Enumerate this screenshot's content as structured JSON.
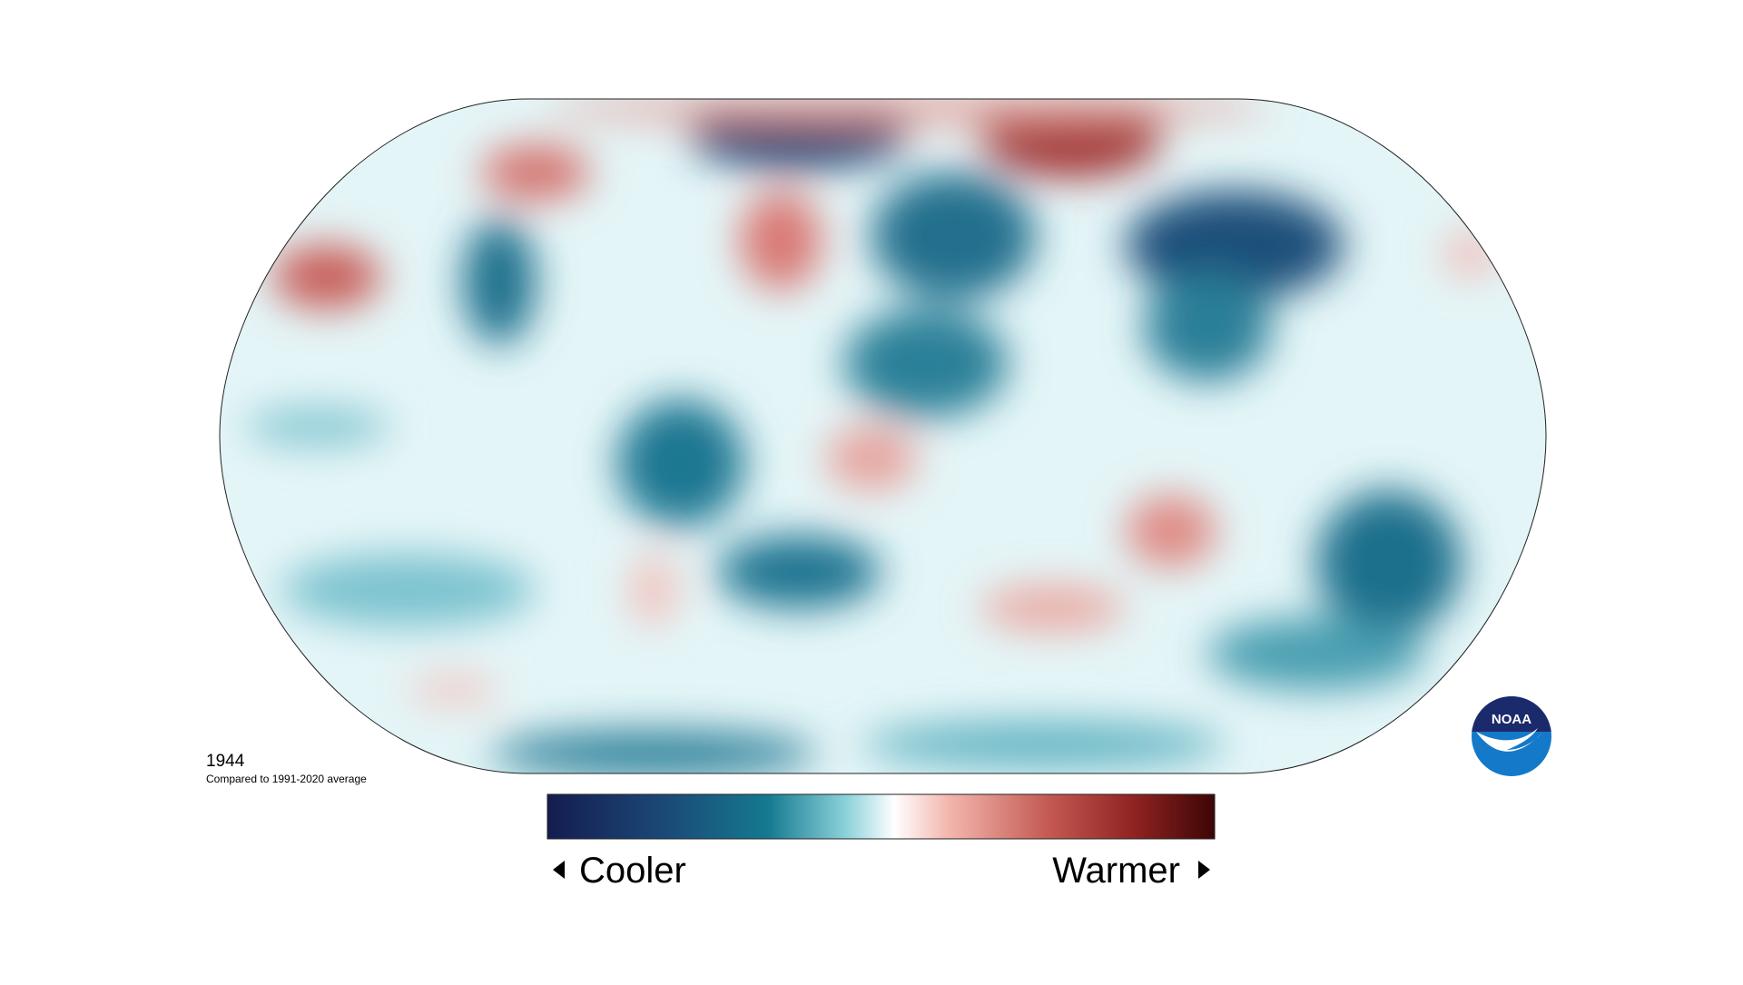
{
  "map": {
    "year": "1944",
    "subtitle": "Compared to 1991-2020 average",
    "legend": {
      "low": "Cooler",
      "high": "Warmer"
    }
  },
  "logo": {
    "text": "NOAA"
  }
}
